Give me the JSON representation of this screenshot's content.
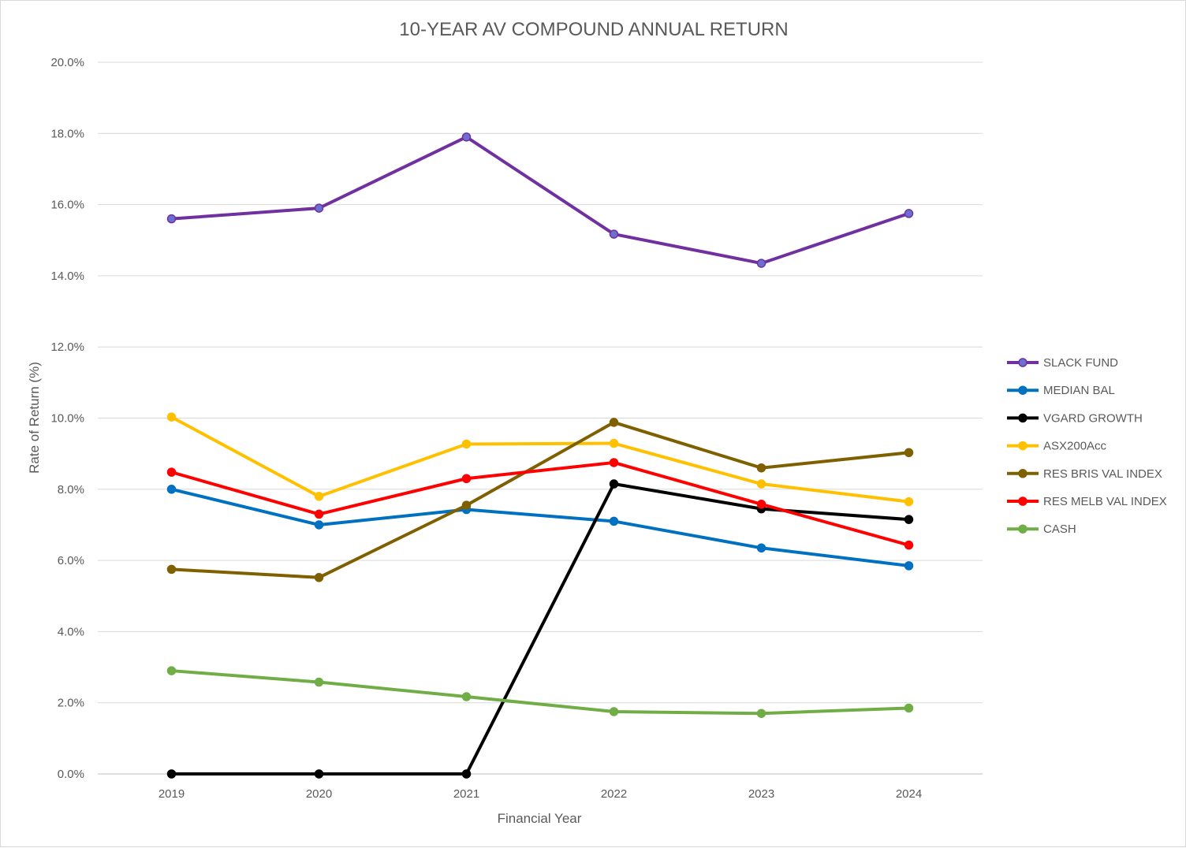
{
  "chart_data": {
    "type": "line",
    "title": "10-YEAR AV COMPOUND ANNUAL RETURN",
    "xlabel": "Financial Year",
    "ylabel": "Rate of Return (%)",
    "categories": [
      "2019",
      "2020",
      "2021",
      "2022",
      "2023",
      "2024"
    ],
    "ylim": [
      0,
      20
    ],
    "ytick_step": 2,
    "ytick_labels": [
      "0.0%",
      "2.0%",
      "4.0%",
      "6.0%",
      "8.0%",
      "10.0%",
      "12.0%",
      "14.0%",
      "16.0%",
      "18.0%",
      "20.0%"
    ],
    "grid": true,
    "legend_position": "right",
    "series": [
      {
        "name": "SLACK FUND",
        "color": "#7030a0",
        "marker_color": "#6a6fd0",
        "values": [
          15.6,
          15.9,
          17.9,
          15.17,
          14.35,
          15.75
        ]
      },
      {
        "name": "MEDIAN BAL",
        "color": "#0070c0",
        "marker_color": "#0070c0",
        "values": [
          8.0,
          7.0,
          7.43,
          7.1,
          6.35,
          5.85
        ]
      },
      {
        "name": "VGARD GROWTH",
        "color": "#000000",
        "marker_color": "#000000",
        "values": [
          0.0,
          0.0,
          0.0,
          8.15,
          7.45,
          7.15
        ]
      },
      {
        "name": "ASX200Acc",
        "color": "#ffc000",
        "marker_color": "#ffc000",
        "values": [
          10.03,
          7.8,
          9.27,
          9.29,
          8.15,
          7.65
        ]
      },
      {
        "name": "RES BRIS VAL INDEX",
        "color": "#7f6000",
        "marker_color": "#7f6000",
        "values": [
          5.75,
          5.52,
          7.55,
          9.88,
          8.6,
          9.03
        ]
      },
      {
        "name": "RES MELB VAL INDEX",
        "color": "#ff0000",
        "marker_color": "#ff0000",
        "values": [
          8.48,
          7.3,
          8.3,
          8.75,
          7.58,
          6.43
        ]
      },
      {
        "name": "CASH",
        "color": "#70ad47",
        "marker_color": "#70ad47",
        "values": [
          2.9,
          2.58,
          2.17,
          1.75,
          1.7,
          1.85
        ]
      }
    ]
  }
}
